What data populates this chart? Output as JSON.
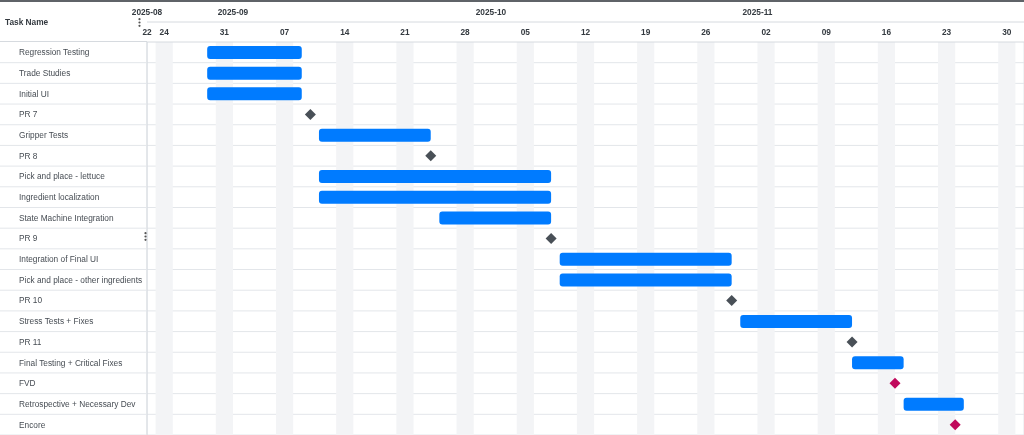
{
  "chart_data": {
    "type": "bar",
    "orientation": "horizontal",
    "ylabel": "Task Name",
    "categories": [
      "Regression Testing",
      "Trade Studies",
      "Initial UI",
      "PR 7",
      "Gripper Tests",
      "PR 8",
      "Pick and place - lettuce",
      "Ingredient localization",
      "State Machine Integration",
      "PR 9",
      "Integration of Final UI",
      "Pick and place - other ingredients",
      "PR 10",
      "Stress Tests + Fixes",
      "PR 11",
      "Final Testing + Critical Fixes",
      "FVD",
      "Retrospective + Necessary Dev",
      "Encore"
    ],
    "series": [
      {
        "color": "#007bff",
        "base": [
          20329,
          20329,
          20329,
          null,
          20342,
          null,
          20342,
          20342,
          20356,
          null,
          20370,
          20370,
          null,
          20391,
          null,
          20404,
          null,
          20410,
          null
        ],
        "values": [
          11,
          11,
          11,
          null,
          13,
          null,
          27,
          27,
          13,
          null,
          20,
          20,
          null,
          13,
          null,
          6,
          null,
          7,
          null
        ]
      },
      {
        "type": "scatter",
        "color": "#495057",
        "values": [
          null,
          null,
          null,
          20341,
          null,
          20355,
          null,
          null,
          null,
          20369,
          null,
          null,
          20390,
          null,
          20404,
          null,
          null,
          null,
          null
        ]
      },
      {
        "type": "scatter",
        "color": "#c0095c",
        "values": [
          null,
          null,
          null,
          null,
          null,
          null,
          null,
          null,
          null,
          null,
          null,
          null,
          null,
          null,
          null,
          null,
          20409,
          null,
          20416
        ]
      }
    ],
    "marker": "diamond",
    "xlim": [
      "2025-08-22",
      "2025-12-02"
    ],
    "xticks": [
      {
        "value": "2025-08-22",
        "label": "22"
      },
      {
        "value": "2025-08-24",
        "label": "24"
      },
      {
        "value": "2025-08-31",
        "label": "31"
      },
      {
        "value": "2025-09-07",
        "label": "07"
      },
      {
        "value": "2025-09-14",
        "label": "14"
      },
      {
        "value": "2025-09-21",
        "label": "21"
      },
      {
        "value": "2025-09-28",
        "label": "28"
      },
      {
        "value": "2025-10-05",
        "label": "05"
      },
      {
        "value": "2025-10-12",
        "label": "12"
      },
      {
        "value": "2025-10-19",
        "label": "19"
      },
      {
        "value": "2025-10-26",
        "label": "26"
      },
      {
        "value": "2025-11-02",
        "label": "02"
      },
      {
        "value": "2025-11-09",
        "label": "09"
      },
      {
        "value": "2025-11-16",
        "label": "16"
      },
      {
        "value": "2025-11-23",
        "label": "23"
      },
      {
        "value": "2025-11-30",
        "label": "30"
      }
    ],
    "x2lim": [
      "2025-08-22",
      "2025-12-02"
    ],
    "x2ticks": [
      {
        "value": "2025-08-22",
        "label": "2025-08"
      },
      {
        "value": "2025-09-01",
        "label": "2025-09"
      },
      {
        "value": "2025-10-01",
        "label": "2025-10"
      },
      {
        "value": "2025-11-01",
        "label": "2025-11"
      }
    ],
    "bands": [
      {
        "axis": "x",
        "from": "2025-08-23",
        "to": "2025-08-25",
        "color": "#f3f4f6"
      },
      {
        "axis": "x",
        "from": "2025-08-30",
        "to": "2025-09-01",
        "color": "#f3f4f6"
      },
      {
        "axis": "x",
        "from": "2025-09-06",
        "to": "2025-09-08",
        "color": "#f3f4f6"
      },
      {
        "axis": "x",
        "from": "2025-09-13",
        "to": "2025-09-15",
        "color": "#f3f4f6"
      },
      {
        "axis": "x",
        "from": "2025-09-20",
        "to": "2025-09-22",
        "color": "#f3f4f6"
      },
      {
        "axis": "x",
        "from": "2025-09-27",
        "to": "2025-09-29",
        "color": "#f3f4f6"
      },
      {
        "axis": "x",
        "from": "2025-10-04",
        "to": "2025-10-06",
        "color": "#f3f4f6"
      },
      {
        "axis": "x",
        "from": "2025-10-11",
        "to": "2025-10-13",
        "color": "#f3f4f6"
      },
      {
        "axis": "x",
        "from": "2025-10-18",
        "to": "2025-10-20",
        "color": "#f3f4f6"
      },
      {
        "axis": "x",
        "from": "2025-10-25",
        "to": "2025-10-27",
        "color": "#f3f4f6"
      },
      {
        "axis": "x",
        "from": "2025-11-01",
        "to": "2025-11-03",
        "color": "#f3f4f6"
      },
      {
        "axis": "x",
        "from": "2025-11-08",
        "to": "2025-11-10",
        "color": "#f3f4f6"
      },
      {
        "axis": "x",
        "from": "2025-11-15",
        "to": "2025-11-17",
        "color": "#f3f4f6"
      },
      {
        "axis": "x",
        "from": "2025-11-22",
        "to": "2025-11-24",
        "color": "#f3f4f6"
      },
      {
        "axis": "x",
        "from": "2025-11-29",
        "to": "2025-12-01",
        "color": "#f3f4f6"
      }
    ],
    "grid": true
  }
}
